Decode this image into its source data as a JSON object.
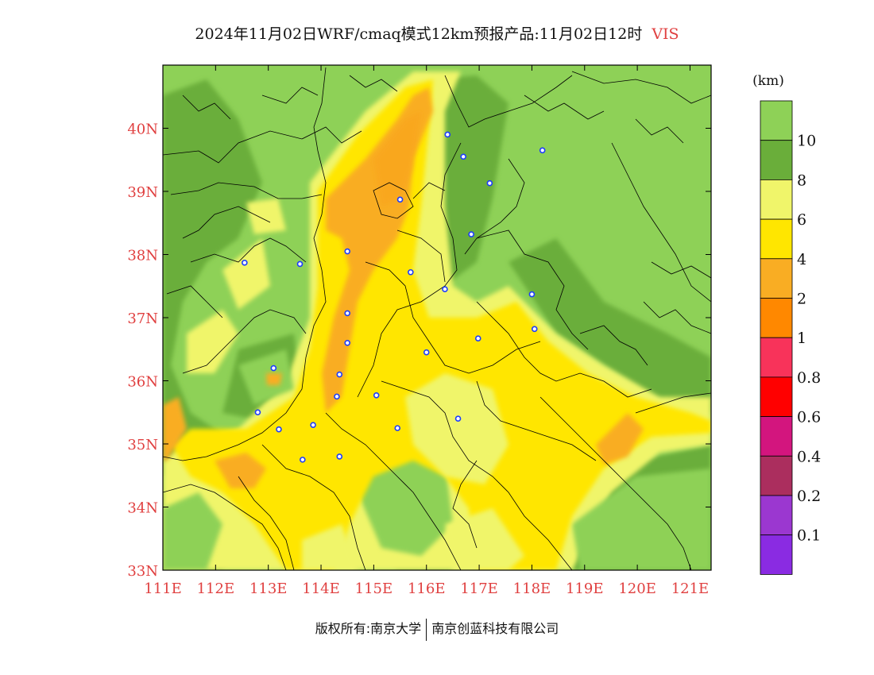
{
  "title": {
    "main": "2024年11月02日WRF/cmaq模式12km预报产品:11月02日12时",
    "variable": "VIS"
  },
  "map": {
    "lon_min": 111,
    "lon_max": 121.4,
    "lat_min": 33,
    "lat_max": 41,
    "x_ticks": [
      "111E",
      "112E",
      "113E",
      "114E",
      "115E",
      "116E",
      "117E",
      "118E",
      "119E",
      "120E",
      "121E"
    ],
    "y_ticks": [
      "33N",
      "34N",
      "35N",
      "36N",
      "37N",
      "38N",
      "39N",
      "40N"
    ],
    "tick_color": "#e04040",
    "stations": [
      [
        116.4,
        39.9
      ],
      [
        116.7,
        39.55
      ],
      [
        117.2,
        39.13
      ],
      [
        118.2,
        39.65
      ],
      [
        115.5,
        38.87
      ],
      [
        116.85,
        38.32
      ],
      [
        114.5,
        38.05
      ],
      [
        113.6,
        37.85
      ],
      [
        112.55,
        37.87
      ],
      [
        115.7,
        37.72
      ],
      [
        116.35,
        37.45
      ],
      [
        118.0,
        37.37
      ],
      [
        114.5,
        37.07
      ],
      [
        118.05,
        36.82
      ],
      [
        116.98,
        36.67
      ],
      [
        114.5,
        36.6
      ],
      [
        116.0,
        36.45
      ],
      [
        113.1,
        36.2
      ],
      [
        114.35,
        36.1
      ],
      [
        114.3,
        35.75
      ],
      [
        115.05,
        35.77
      ],
      [
        112.8,
        35.5
      ],
      [
        113.2,
        35.23
      ],
      [
        113.85,
        35.3
      ],
      [
        115.45,
        35.25
      ],
      [
        116.6,
        35.4
      ],
      [
        114.35,
        34.8
      ],
      [
        113.65,
        34.75
      ]
    ]
  },
  "legend": {
    "unit": "(km)",
    "bins": [
      {
        "color": "#8ed157"
      },
      {
        "color": "#6aae3a",
        "label": "10"
      },
      {
        "color": "#f0f56a",
        "label": "8"
      },
      {
        "color": "#ffe600",
        "label": "6"
      },
      {
        "color": "#f9ad23",
        "label": "4"
      },
      {
        "color": "#ff8800",
        "label": "2"
      },
      {
        "color": "#f8335a",
        "label": "1"
      },
      {
        "color": "#ff0000",
        "label": "0.8"
      },
      {
        "color": "#d3157e",
        "label": "0.6"
      },
      {
        "color": "#ab2e5e",
        "label": "0.4"
      },
      {
        "color": "#9b37d0",
        "label": "0.2"
      },
      {
        "color": "#8a2be2",
        "label": "0.1"
      }
    ]
  },
  "footer": {
    "left": "版权所有:南京大学",
    "right": "南京创蓝科技有限公司"
  }
}
